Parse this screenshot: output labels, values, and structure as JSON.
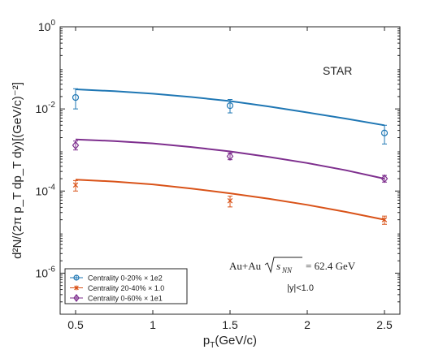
{
  "chart_data": {
    "type": "scatter",
    "xlabel": "p_T(GeV/c)",
    "ylabel": "d²N/(2π p_T dp_T dy)[(GeV/c)⁻²]",
    "xlim": [
      0.4,
      2.6
    ],
    "ylim": [
      1e-07,
      1
    ],
    "yscale": "log",
    "x_ticks": [
      {
        "value": 0.5,
        "label": "0.5"
      },
      {
        "value": 1,
        "label": "1"
      },
      {
        "value": 1.5,
        "label": "1.5"
      },
      {
        "value": 2,
        "label": "2"
      },
      {
        "value": 2.5,
        "label": "2.5"
      }
    ],
    "y_ticks": [
      {
        "value": 1e-06,
        "base": "10",
        "exp": "-6"
      },
      {
        "value": 0.0001,
        "base": "10",
        "exp": "-4"
      },
      {
        "value": 0.01,
        "base": "10",
        "exp": "-2"
      },
      {
        "value": 1,
        "base": "10",
        "exp": "0"
      }
    ],
    "grid": false,
    "legend_position": "bottom-left",
    "annotations": {
      "experiment": "STAR",
      "system": "Au+Au",
      "sqrt_snn_label": "s",
      "sqrt_snn_sub": "NN",
      "energy": "= 62.4 GeV",
      "rapidity": "|y|<1.0"
    },
    "series": [
      {
        "name": "Centrality  0-20% × 1e2",
        "color": "#1f77b4",
        "marker": "circle",
        "points": [
          {
            "x": 0.5,
            "y": 0.019,
            "err_low": 0.009,
            "err_high": 0.012
          },
          {
            "x": 1.5,
            "y": 0.012,
            "err_low": 0.004,
            "err_high": 0.005
          },
          {
            "x": 2.5,
            "y": 0.0026,
            "err_low": 0.0012,
            "err_high": 0.0014
          }
        ],
        "fit": [
          [
            0.5,
            0.03
          ],
          [
            0.75,
            0.027
          ],
          [
            1.0,
            0.0235
          ],
          [
            1.25,
            0.0195
          ],
          [
            1.5,
            0.0155
          ],
          [
            1.75,
            0.0115
          ],
          [
            2.0,
            0.0082
          ],
          [
            2.25,
            0.0058
          ],
          [
            2.5,
            0.004
          ]
        ]
      },
      {
        "name": "Centrality 20-40% × 1.0",
        "color": "#d95319",
        "marker": "cross",
        "points": [
          {
            "x": 0.5,
            "y": 0.00014,
            "err_low": 4e-05,
            "err_high": 4e-05
          },
          {
            "x": 1.5,
            "y": 5.8e-05,
            "err_low": 1.7e-05,
            "err_high": 1.7e-05
          },
          {
            "x": 2.5,
            "y": 2e-05,
            "err_low": 4.5e-06,
            "err_high": 4.5e-06
          }
        ],
        "fit": [
          [
            0.5,
            0.00019
          ],
          [
            0.75,
            0.00017
          ],
          [
            1.0,
            0.000145
          ],
          [
            1.25,
            0.000115
          ],
          [
            1.5,
            8.8e-05
          ],
          [
            1.75,
            6.5e-05
          ],
          [
            2.0,
            4.6e-05
          ],
          [
            2.25,
            3.1e-05
          ],
          [
            2.5,
            2e-05
          ]
        ]
      },
      {
        "name": "Centrality  0-60% × 1e1",
        "color": "#7e2f8e",
        "marker": "diamond",
        "points": [
          {
            "x": 0.5,
            "y": 0.0013,
            "err_low": 0.0003,
            "err_high": 0.00035
          },
          {
            "x": 1.5,
            "y": 0.0007,
            "err_low": 0.00012,
            "err_high": 0.00014
          },
          {
            "x": 2.5,
            "y": 0.0002,
            "err_low": 3.5e-05,
            "err_high": 4e-05
          }
        ],
        "fit": [
          [
            0.5,
            0.0018
          ],
          [
            0.75,
            0.00165
          ],
          [
            1.0,
            0.00145
          ],
          [
            1.25,
            0.00118
          ],
          [
            1.5,
            0.00092
          ],
          [
            1.75,
            0.00068
          ],
          [
            2.0,
            0.00048
          ],
          [
            2.25,
            0.00032
          ],
          [
            2.5,
            0.0002
          ]
        ]
      }
    ]
  }
}
